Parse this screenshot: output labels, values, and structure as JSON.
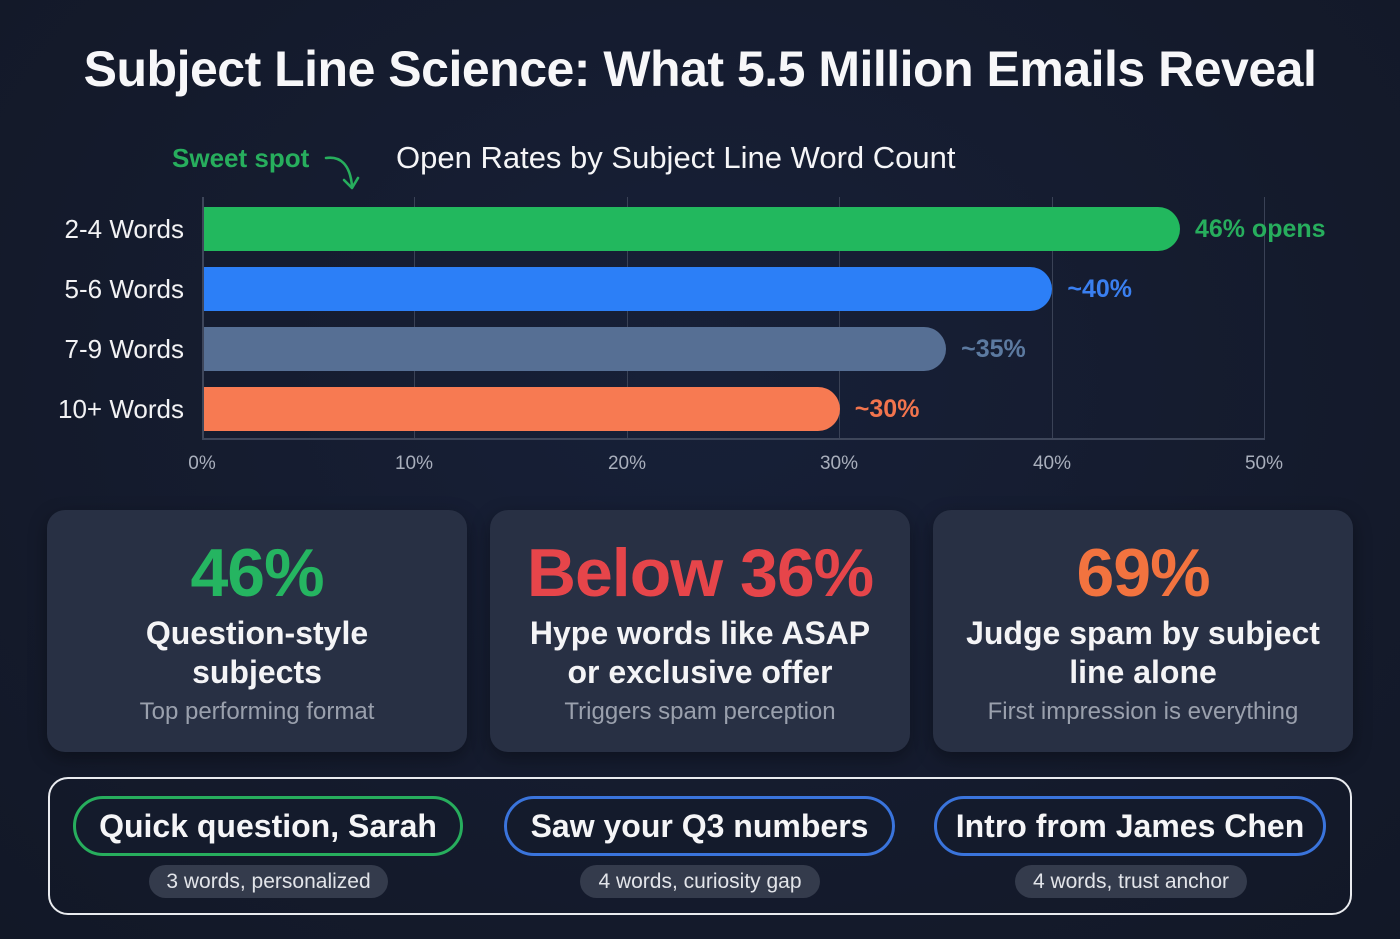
{
  "title": "Subject Line Science: What 5.5 Million Emails Reveal",
  "chart_data": {
    "type": "bar",
    "orientation": "horizontal",
    "title": "Open Rates by Subject Line Word Count",
    "annotation": "Sweet spot",
    "categories": [
      "2-4 Words",
      "5-6 Words",
      "7-9 Words",
      "10+ Words"
    ],
    "values": [
      46,
      40,
      35,
      30
    ],
    "value_labels": [
      "46% opens",
      "~40%",
      "~35%",
      "~30%"
    ],
    "colors": [
      "#22b85e",
      "#2c7ff7",
      "#566f94",
      "#f77a52"
    ],
    "label_colors": [
      "#27ae5d",
      "#3a7ff0",
      "#5c7aa0",
      "#f2744d"
    ],
    "xlabel": "",
    "ylabel": "",
    "xlim": [
      0,
      50
    ],
    "xticks": [
      "0%",
      "10%",
      "20%",
      "30%",
      "40%",
      "50%"
    ],
    "grid": true,
    "legend": "none"
  },
  "stats": [
    {
      "value": "46%",
      "color": "#25b561",
      "description": "Question-style subjects",
      "sub": "Top performing format"
    },
    {
      "value": "Below 36%",
      "color": "#e6454a",
      "description": "Hype words like ASAP or exclusive offer",
      "sub": "Triggers spam perception"
    },
    {
      "value": "69%",
      "color": "#f2733f",
      "description": "Judge spam by subject line alone",
      "sub": "First impression is everything"
    }
  ],
  "examples": [
    {
      "subject": "Quick question, Sarah",
      "note": "3 words, personalized",
      "border": "#27ae5d"
    },
    {
      "subject": "Saw your Q3 numbers",
      "note": "4 words, curiosity gap",
      "border": "#3a74dc"
    },
    {
      "subject": "Intro from James Chen",
      "note": "4 words, trust anchor",
      "border": "#3a74dc"
    }
  ]
}
